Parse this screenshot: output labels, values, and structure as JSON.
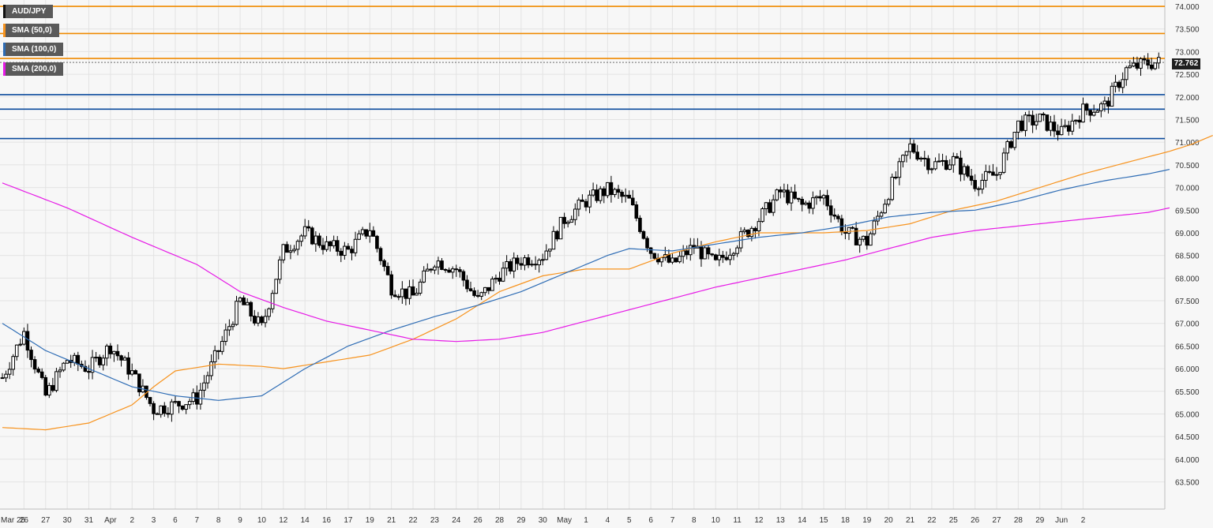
{
  "legend": {
    "symbol": "AUD/JPY",
    "sma50": "SMA (50,0)",
    "sma100": "SMA (100,0)",
    "sma200": "SMA (200,0)"
  },
  "price_tag": "72.762",
  "colors": {
    "background": "#f7f7f7",
    "grid": "#e3e3e3",
    "candle": "#000000",
    "sma50": "#f7931e",
    "sma100": "#2f6db5",
    "sma200": "#e619e6",
    "resistance": "#f08a00",
    "support": "#0b4a9c",
    "symbol_swatch": "#111111"
  },
  "chart_data": {
    "type": "candlestick",
    "title": "",
    "ylim": [
      62.9,
      74.14
    ],
    "y_ticks": [
      "63.500",
      "64.000",
      "64.500",
      "65.000",
      "65.500",
      "66.000",
      "66.500",
      "67.000",
      "67.500",
      "68.000",
      "68.500",
      "69.000",
      "69.500",
      "70.000",
      "70.500",
      "71.000",
      "71.500",
      "72.000",
      "72.500",
      "73.000",
      "73.500",
      "74.000"
    ],
    "x_ticks": [
      "Mar 25",
      "26",
      "27",
      "30",
      "31",
      "Apr",
      "2",
      "3",
      "6",
      "7",
      "8",
      "9",
      "10",
      "12",
      "14",
      "16",
      "17",
      "19",
      "21",
      "22",
      "23",
      "24",
      "26",
      "28",
      "29",
      "30",
      "May",
      "1",
      "4",
      "5",
      "6",
      "7",
      "8",
      "10",
      "11",
      "12",
      "13",
      "14",
      "15",
      "18",
      "19",
      "20",
      "21",
      "22",
      "25",
      "26",
      "27",
      "28",
      "29",
      "Jun",
      "2"
    ],
    "grid": true,
    "last_price": 72.762,
    "horizontal_levels": {
      "resistance": [
        74.0,
        73.4,
        72.85
      ],
      "support": [
        72.05,
        71.73,
        71.08
      ]
    },
    "series": [
      {
        "name": "SMA (50,0)",
        "anchors": [
          [
            0,
            64.7
          ],
          [
            2,
            64.65
          ],
          [
            4,
            64.8
          ],
          [
            6,
            65.2
          ],
          [
            7,
            65.6
          ],
          [
            8,
            65.95
          ],
          [
            10,
            66.1
          ],
          [
            12,
            66.05
          ],
          [
            13,
            66.0
          ],
          [
            15,
            66.15
          ],
          [
            17,
            66.3
          ],
          [
            19,
            66.65
          ],
          [
            21,
            67.1
          ],
          [
            23,
            67.7
          ],
          [
            25,
            68.05
          ],
          [
            27,
            68.2
          ],
          [
            29,
            68.2
          ],
          [
            31,
            68.55
          ],
          [
            33,
            68.8
          ],
          [
            35,
            69.0
          ],
          [
            36,
            69.0
          ],
          [
            38,
            69.0
          ],
          [
            40,
            69.05
          ],
          [
            42,
            69.2
          ],
          [
            44,
            69.5
          ],
          [
            46,
            69.7
          ],
          [
            48,
            70.0
          ],
          [
            50,
            70.3
          ],
          [
            52,
            70.55
          ],
          [
            54,
            70.8
          ],
          [
            55,
            70.95
          ],
          [
            56,
            71.15
          ]
        ]
      },
      {
        "name": "SMA (100,0)",
        "anchors": [
          [
            0,
            67.0
          ],
          [
            2,
            66.4
          ],
          [
            4,
            66.0
          ],
          [
            6,
            65.6
          ],
          [
            8,
            65.4
          ],
          [
            10,
            65.3
          ],
          [
            12,
            65.4
          ],
          [
            14,
            66.0
          ],
          [
            16,
            66.5
          ],
          [
            18,
            66.85
          ],
          [
            20,
            67.15
          ],
          [
            22,
            67.4
          ],
          [
            24,
            67.7
          ],
          [
            26,
            68.1
          ],
          [
            28,
            68.5
          ],
          [
            29,
            68.65
          ],
          [
            31,
            68.6
          ],
          [
            33,
            68.75
          ],
          [
            35,
            68.9
          ],
          [
            37,
            69.0
          ],
          [
            39,
            69.15
          ],
          [
            41,
            69.35
          ],
          [
            43,
            69.45
          ],
          [
            45,
            69.5
          ],
          [
            47,
            69.7
          ],
          [
            49,
            69.95
          ],
          [
            51,
            70.15
          ],
          [
            53,
            70.3
          ],
          [
            54,
            70.4
          ]
        ]
      },
      {
        "name": "SMA (200,0)",
        "anchors": [
          [
            0,
            70.1
          ],
          [
            3,
            69.55
          ],
          [
            6,
            68.9
          ],
          [
            9,
            68.3
          ],
          [
            11,
            67.7
          ],
          [
            13,
            67.35
          ],
          [
            15,
            67.05
          ],
          [
            17,
            66.85
          ],
          [
            19,
            66.65
          ],
          [
            21,
            66.6
          ],
          [
            23,
            66.65
          ],
          [
            25,
            66.8
          ],
          [
            27,
            67.05
          ],
          [
            29,
            67.3
          ],
          [
            31,
            67.55
          ],
          [
            33,
            67.8
          ],
          [
            35,
            68.0
          ],
          [
            37,
            68.2
          ],
          [
            39,
            68.4
          ],
          [
            41,
            68.65
          ],
          [
            43,
            68.9
          ],
          [
            45,
            69.05
          ],
          [
            47,
            69.15
          ],
          [
            49,
            69.25
          ],
          [
            51,
            69.35
          ],
          [
            53,
            69.45
          ],
          [
            54,
            69.55
          ]
        ]
      }
    ],
    "ohlc_anchors": [
      [
        0,
        65.8
      ],
      [
        1,
        66.8
      ],
      [
        2,
        65.4
      ],
      [
        3,
        66.2
      ],
      [
        4,
        66.0
      ],
      [
        5,
        66.5
      ],
      [
        6,
        65.9
      ],
      [
        7,
        65.1
      ],
      [
        8,
        65.2
      ],
      [
        9,
        65.35
      ],
      [
        10,
        66.4
      ],
      [
        11,
        67.5
      ],
      [
        12,
        66.9
      ],
      [
        13,
        68.6
      ],
      [
        14,
        69.0
      ],
      [
        15,
        68.7
      ],
      [
        16,
        68.6
      ],
      [
        17,
        69.1
      ],
      [
        18,
        67.8
      ],
      [
        19,
        67.6
      ],
      [
        20,
        68.4
      ],
      [
        21,
        68.2
      ],
      [
        22,
        67.5
      ],
      [
        23,
        68.1
      ],
      [
        24,
        68.4
      ],
      [
        25,
        68.5
      ],
      [
        26,
        69.3
      ],
      [
        27,
        69.7
      ],
      [
        28,
        69.95
      ],
      [
        29,
        69.7
      ],
      [
        30,
        68.6
      ],
      [
        31,
        68.3
      ],
      [
        32,
        68.7
      ],
      [
        33,
        68.3
      ],
      [
        34,
        68.8
      ],
      [
        35,
        69.3
      ],
      [
        36,
        69.9
      ],
      [
        37,
        69.6
      ],
      [
        38,
        69.8
      ],
      [
        39,
        69.0
      ],
      [
        40,
        68.8
      ],
      [
        41,
        69.9
      ],
      [
        42,
        70.9
      ],
      [
        43,
        70.5
      ],
      [
        44,
        70.6
      ],
      [
        45,
        70.1
      ],
      [
        46,
        70.3
      ],
      [
        47,
        71.4
      ],
      [
        48,
        71.5
      ],
      [
        49,
        71.2
      ],
      [
        50,
        71.7
      ],
      [
        51,
        71.8
      ],
      [
        52,
        72.6
      ],
      [
        53,
        72.75
      ],
      [
        53.6,
        72.76
      ]
    ]
  }
}
